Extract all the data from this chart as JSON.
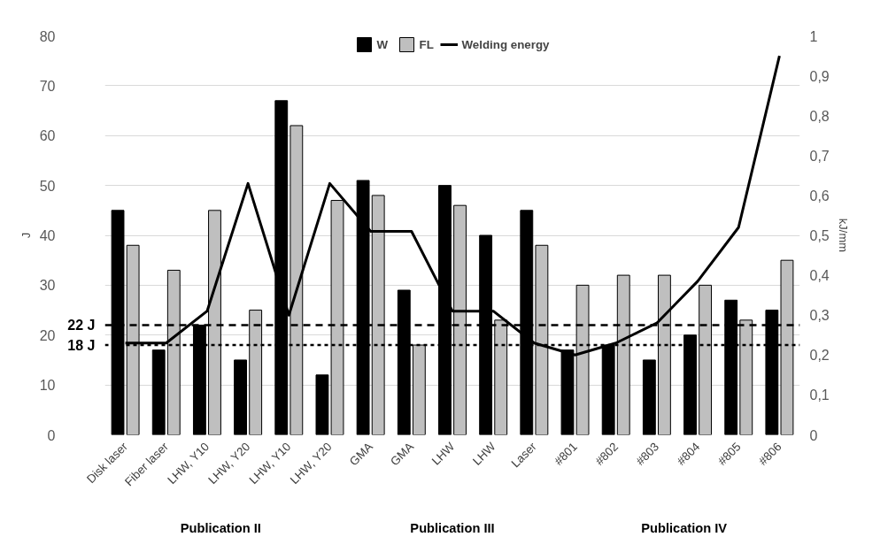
{
  "chart_data": {
    "type": "bar",
    "categories": [
      "Disk laser",
      "Fiber laser",
      "LHW, Y10",
      "LHW, Y20",
      "LHW, Y10",
      "LHW, Y20",
      "GMA",
      "GMA",
      "LHW",
      "LHW",
      "Laser",
      "#801",
      "#802",
      "#803",
      "#804",
      "#805",
      "#806"
    ],
    "series": [
      {
        "name": "W",
        "color": "#000000",
        "values": [
          45,
          17,
          22,
          15,
          67,
          12,
          51,
          29,
          50,
          40,
          45,
          17,
          18,
          15,
          20,
          27,
          25
        ]
      },
      {
        "name": "FL",
        "color": "#bfbfbf",
        "values": [
          38,
          33,
          45,
          25,
          62,
          47,
          48,
          18,
          46,
          23,
          38,
          30,
          32,
          32,
          30,
          23,
          35
        ]
      },
      {
        "name": "Welding energy",
        "type": "line",
        "axis": "y2",
        "color": "#000000",
        "values": [
          0.23,
          0.23,
          0.31,
          0.63,
          0.3,
          0.63,
          0.51,
          0.51,
          0.31,
          0.31,
          0.23,
          0.2,
          0.23,
          0.28,
          0.385,
          0.52,
          0.95
        ]
      }
    ],
    "ylabel": "J",
    "y2label": "kJ/mm",
    "ylim": [
      0,
      80
    ],
    "yticks": [
      0,
      10,
      20,
      30,
      40,
      50,
      60,
      70,
      80
    ],
    "y2lim": [
      0,
      1
    ],
    "y2ticks": [
      0,
      {
        "value": 0.1,
        "label": "0,1"
      },
      {
        "value": 0.2,
        "label": "0,2"
      },
      {
        "value": 0.3,
        "label": "0,3"
      },
      {
        "value": 0.4,
        "label": "0,4"
      },
      {
        "value": 0.5,
        "label": "0,5"
      },
      {
        "value": 0.6,
        "label": "0,6"
      },
      {
        "value": 0.7,
        "label": "0,7"
      },
      {
        "value": 0.8,
        "label": "0,8"
      },
      {
        "value": 0.9,
        "label": "0,9"
      },
      1
    ],
    "ref_lines": [
      {
        "axis": "y",
        "value": 22,
        "label": "22 J",
        "color": "#000000",
        "line_style": "dashed"
      },
      {
        "axis": "y",
        "value": 18,
        "label": "18 J",
        "color": "#000000",
        "line_style": "dotted"
      }
    ],
    "annotations": [
      "Publication II",
      "Publication III",
      "Publication IV"
    ],
    "grid": "y",
    "legend": "top"
  }
}
